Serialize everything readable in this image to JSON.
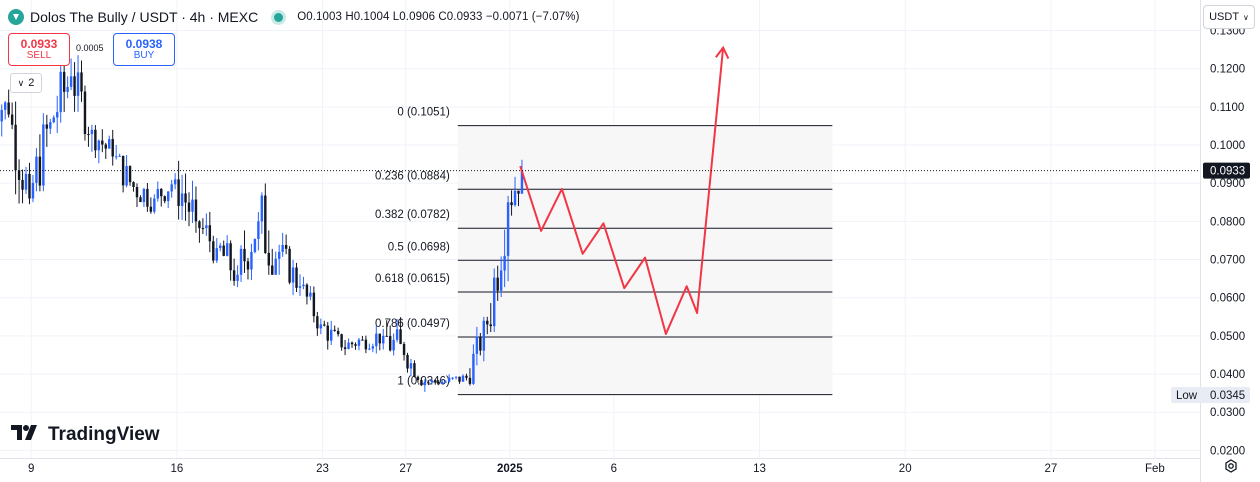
{
  "header": {
    "symbol_title": "Dolos The Bully / USDT · 4h · MEXC",
    "ohlc_text": "O0.1003 H0.1004 L0.0906 C0.0933 −0.0071 (−7.07%)"
  },
  "trade": {
    "sell_price": "0.0933",
    "sell_label": "SELL",
    "spread": "0.0005",
    "buy_price": "0.0938",
    "buy_label": "BUY"
  },
  "indicators_toggle": {
    "label": "2"
  },
  "currency_button": {
    "label": "USDT"
  },
  "logo": {
    "text": "TradingView"
  },
  "colors": {
    "up": "#2962ff",
    "down": "#131722",
    "projection": "#f23645",
    "grid": "#f0f3fa"
  },
  "chart_data": {
    "type": "candlestick",
    "y_axis": {
      "min": 0.018,
      "max": 0.138,
      "ticks": [
        0.02,
        0.03,
        0.04,
        0.05,
        0.06,
        0.07,
        0.08,
        0.09,
        0.1,
        0.11,
        0.12,
        0.13
      ],
      "tick_labels": [
        "0.0200",
        "0.0300",
        "0.0400",
        "0.0500",
        "0.0600",
        "0.0700",
        "0.0800",
        "0.0900",
        "0.1000",
        "0.1100",
        "0.1200",
        "0.1300"
      ]
    },
    "x_axis": {
      "tick_labels": [
        "9",
        "16",
        "23",
        "27",
        "2025",
        "6",
        "13",
        "20",
        "27",
        "Feb"
      ],
      "bold_label": "2025"
    },
    "last_price": {
      "value": 0.0933,
      "label": "0.0933"
    },
    "low_marker": {
      "label": "Low",
      "value": 0.0345,
      "value_label": "0.0345"
    },
    "fibonacci": {
      "levels": [
        {
          "ratio": "0",
          "price": 0.1051,
          "label": "0 (0.1051)"
        },
        {
          "ratio": "0.236",
          "price": 0.0884,
          "label": "0.236 (0.0884)"
        },
        {
          "ratio": "0.382",
          "price": 0.0782,
          "label": "0.382 (0.0782)"
        },
        {
          "ratio": "0.5",
          "price": 0.0698,
          "label": "0.5 (0.0698)"
        },
        {
          "ratio": "0.618",
          "price": 0.0615,
          "label": "0.618 (0.0615)"
        },
        {
          "ratio": "0.786",
          "price": 0.0497,
          "label": "0.786 (0.0497)"
        },
        {
          "ratio": "1",
          "price": 0.0346,
          "label": "1 (0.0346)"
        }
      ]
    },
    "projection_path": [
      {
        "x": "2025-01-01 12:00",
        "y": 0.0945
      },
      {
        "x": "2025-01-02 12:00",
        "y": 0.0775
      },
      {
        "x": "2025-01-03 12:00",
        "y": 0.0885
      },
      {
        "x": "2025-01-04 12:00",
        "y": 0.0715
      },
      {
        "x": "2025-01-05 12:00",
        "y": 0.0795
      },
      {
        "x": "2025-01-06 12:00",
        "y": 0.0625
      },
      {
        "x": "2025-01-07 12:00",
        "y": 0.0705
      },
      {
        "x": "2025-01-08 12:00",
        "y": 0.0505
      },
      {
        "x": "2025-01-09 12:00",
        "y": 0.063
      },
      {
        "x": "2025-01-10 00:00",
        "y": 0.056
      },
      {
        "x": "2025-01-11 06:00",
        "y": 0.1255
      }
    ],
    "candles_daily_summary": [
      {
        "date": "2024-12-07",
        "o": 0.115,
        "h": 0.128,
        "l": 0.1,
        "c": 0.108
      },
      {
        "date": "2024-12-08",
        "o": 0.108,
        "h": 0.118,
        "l": 0.082,
        "c": 0.086
      },
      {
        "date": "2024-12-09",
        "o": 0.086,
        "h": 0.112,
        "l": 0.077,
        "c": 0.106
      },
      {
        "date": "2024-12-10",
        "o": 0.106,
        "h": 0.135,
        "l": 0.1,
        "c": 0.118
      },
      {
        "date": "2024-12-11",
        "o": 0.118,
        "h": 0.125,
        "l": 0.098,
        "c": 0.104
      },
      {
        "date": "2024-12-12",
        "o": 0.104,
        "h": 0.112,
        "l": 0.093,
        "c": 0.097
      },
      {
        "date": "2024-12-13",
        "o": 0.097,
        "h": 0.104,
        "l": 0.085,
        "c": 0.089
      },
      {
        "date": "2024-12-14",
        "o": 0.089,
        "h": 0.1,
        "l": 0.082,
        "c": 0.086
      },
      {
        "date": "2024-12-15",
        "o": 0.086,
        "h": 0.097,
        "l": 0.08,
        "c": 0.091
      },
      {
        "date": "2024-12-16",
        "o": 0.091,
        "h": 0.107,
        "l": 0.077,
        "c": 0.08
      },
      {
        "date": "2024-12-17",
        "o": 0.08,
        "h": 0.091,
        "l": 0.069,
        "c": 0.073
      },
      {
        "date": "2024-12-18",
        "o": 0.073,
        "h": 0.084,
        "l": 0.061,
        "c": 0.066
      },
      {
        "date": "2024-12-19",
        "o": 0.066,
        "h": 0.093,
        "l": 0.063,
        "c": 0.08
      },
      {
        "date": "2024-12-20",
        "o": 0.08,
        "h": 0.111,
        "l": 0.066,
        "c": 0.072
      },
      {
        "date": "2024-12-21",
        "o": 0.072,
        "h": 0.077,
        "l": 0.058,
        "c": 0.063
      },
      {
        "date": "2024-12-22",
        "o": 0.063,
        "h": 0.066,
        "l": 0.05,
        "c": 0.053
      },
      {
        "date": "2024-12-23",
        "o": 0.053,
        "h": 0.056,
        "l": 0.042,
        "c": 0.047
      },
      {
        "date": "2024-12-24",
        "o": 0.047,
        "h": 0.053,
        "l": 0.042,
        "c": 0.049
      },
      {
        "date": "2024-12-25",
        "o": 0.049,
        "h": 0.057,
        "l": 0.045,
        "c": 0.05
      },
      {
        "date": "2024-12-26",
        "o": 0.05,
        "h": 0.068,
        "l": 0.043,
        "c": 0.045
      },
      {
        "date": "2024-12-27",
        "o": 0.045,
        "h": 0.047,
        "l": 0.035,
        "c": 0.038
      },
      {
        "date": "2024-12-28",
        "o": 0.038,
        "h": 0.041,
        "l": 0.036,
        "c": 0.038
      },
      {
        "date": "2024-12-29",
        "o": 0.038,
        "h": 0.042,
        "l": 0.035,
        "c": 0.039
      },
      {
        "date": "2024-12-30",
        "o": 0.039,
        "h": 0.055,
        "l": 0.037,
        "c": 0.053
      },
      {
        "date": "2024-12-31",
        "o": 0.053,
        "h": 0.09,
        "l": 0.051,
        "c": 0.085
      },
      {
        "date": "2025-01-01",
        "o": 0.085,
        "h": 0.1051,
        "l": 0.081,
        "c": 0.0933
      }
    ]
  }
}
